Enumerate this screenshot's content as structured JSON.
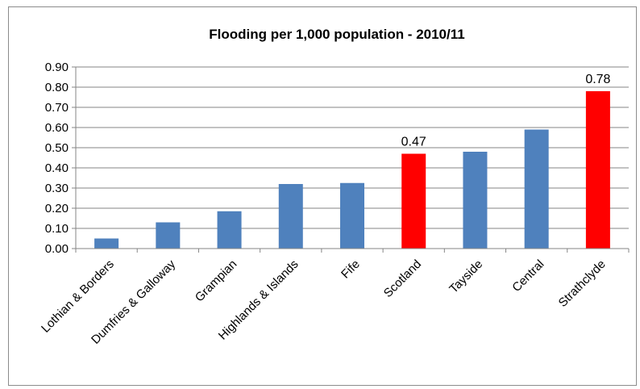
{
  "chart_data": {
    "type": "bar",
    "title": "Flooding per 1,000 population - 2010/11",
    "categories": [
      "Lothian & Borders",
      "Dumfries & Galloway",
      "Grampian",
      "Highlands & Islands",
      "Fife",
      "Scotland",
      "Tayside",
      "Central",
      "Strathclyde"
    ],
    "values": [
      0.05,
      0.13,
      0.185,
      0.32,
      0.325,
      0.47,
      0.48,
      0.59,
      0.78
    ],
    "highlighted": [
      "Scotland",
      "Strathclyde"
    ],
    "data_labels": [
      {
        "category": "Scotland",
        "text": "0.47"
      },
      {
        "category": "Strathclyde",
        "text": "0.78"
      }
    ],
    "yticks": [
      "0.00",
      "0.10",
      "0.20",
      "0.30",
      "0.40",
      "0.50",
      "0.60",
      "0.70",
      "0.80",
      "0.90"
    ],
    "ylim": [
      0,
      0.9
    ],
    "xlabel": "",
    "ylabel": "",
    "grid": true,
    "colors": {
      "default": "#4f81bd",
      "highlight": "#ff0000",
      "grid": "#868686",
      "axis": "#868686"
    }
  }
}
